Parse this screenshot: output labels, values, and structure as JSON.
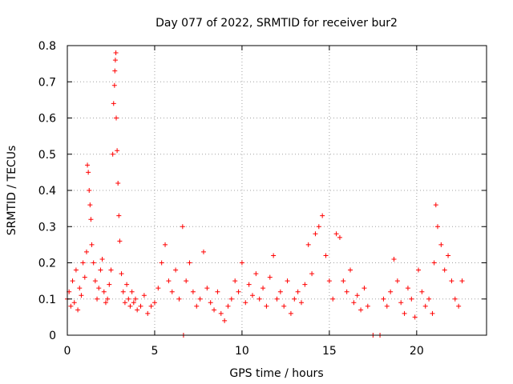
{
  "chart_data": {
    "type": "scatter",
    "title": "Day 077 of 2022, SRMTID for receiver bur2",
    "xlabel": "GPS time / hours",
    "ylabel": "SRMTID / TECUs",
    "xlim": [
      0,
      24
    ],
    "ylim": [
      0,
      0.8
    ],
    "xticks": [
      0,
      5,
      10,
      15,
      20
    ],
    "xtick_labels": [
      "0",
      "5",
      "10",
      "15",
      "20"
    ],
    "yticks": [
      0,
      0.1,
      0.2,
      0.3,
      0.4,
      0.5,
      0.6,
      0.7,
      0.8
    ],
    "ytick_labels": [
      "0",
      "0.1",
      "0.2",
      "0.3",
      "0.4",
      "0.5",
      "0.6",
      "0.7",
      "0.8"
    ],
    "grid": true,
    "marker": "+",
    "series": [
      {
        "name": "SRMTID",
        "color": "#ff0000",
        "x": [
          0.0,
          0.1,
          0.2,
          0.3,
          0.4,
          0.5,
          0.6,
          0.7,
          0.8,
          0.9,
          1.0,
          1.1,
          1.15,
          1.2,
          1.25,
          1.3,
          1.35,
          1.4,
          1.5,
          1.6,
          1.7,
          1.8,
          1.9,
          2.0,
          2.1,
          2.2,
          2.3,
          2.4,
          2.5,
          2.6,
          2.65,
          2.7,
          2.72,
          2.75,
          2.78,
          2.8,
          2.85,
          2.9,
          2.95,
          3.0,
          3.1,
          3.2,
          3.3,
          3.4,
          3.5,
          3.6,
          3.7,
          3.8,
          3.9,
          4.0,
          4.2,
          4.4,
          4.6,
          4.8,
          5.0,
          5.2,
          5.4,
          5.6,
          5.8,
          6.0,
          6.2,
          6.4,
          6.6,
          6.65,
          6.8,
          7.0,
          7.2,
          7.4,
          7.6,
          7.8,
          8.0,
          8.2,
          8.4,
          8.6,
          8.8,
          9.0,
          9.2,
          9.4,
          9.6,
          9.8,
          10.0,
          10.2,
          10.4,
          10.6,
          10.8,
          11.0,
          11.2,
          11.4,
          11.6,
          11.8,
          12.0,
          12.2,
          12.4,
          12.6,
          12.8,
          13.0,
          13.2,
          13.4,
          13.6,
          13.8,
          14.0,
          14.2,
          14.4,
          14.6,
          14.8,
          15.0,
          15.2,
          15.4,
          15.6,
          15.8,
          16.0,
          16.2,
          16.4,
          16.6,
          16.8,
          17.0,
          17.2,
          17.5,
          17.9,
          18.1,
          18.3,
          18.5,
          18.7,
          18.9,
          19.1,
          19.3,
          19.5,
          19.7,
          19.9,
          20.1,
          20.3,
          20.5,
          20.7,
          20.9,
          21.0,
          21.1,
          21.2,
          21.4,
          21.6,
          21.8,
          22.0,
          22.2,
          22.4,
          22.6
        ],
        "y": [
          0.1,
          0.12,
          0.08,
          0.15,
          0.09,
          0.18,
          0.07,
          0.13,
          0.11,
          0.2,
          0.16,
          0.23,
          0.47,
          0.45,
          0.4,
          0.36,
          0.32,
          0.25,
          0.2,
          0.15,
          0.1,
          0.13,
          0.18,
          0.21,
          0.12,
          0.09,
          0.1,
          0.14,
          0.18,
          0.5,
          0.64,
          0.69,
          0.73,
          0.76,
          0.78,
          0.6,
          0.51,
          0.42,
          0.33,
          0.26,
          0.17,
          0.12,
          0.09,
          0.14,
          0.1,
          0.08,
          0.12,
          0.09,
          0.1,
          0.07,
          0.08,
          0.11,
          0.06,
          0.08,
          0.09,
          0.13,
          0.2,
          0.25,
          0.15,
          0.12,
          0.18,
          0.1,
          0.3,
          0.0,
          0.15,
          0.2,
          0.12,
          0.08,
          0.1,
          0.23,
          0.13,
          0.09,
          0.07,
          0.12,
          0.06,
          0.04,
          0.08,
          0.1,
          0.15,
          0.12,
          0.2,
          0.09,
          0.14,
          0.11,
          0.17,
          0.1,
          0.13,
          0.08,
          0.16,
          0.22,
          0.1,
          0.12,
          0.08,
          0.15,
          0.06,
          0.1,
          0.12,
          0.09,
          0.14,
          0.25,
          0.17,
          0.28,
          0.3,
          0.33,
          0.22,
          0.15,
          0.1,
          0.28,
          0.27,
          0.15,
          0.12,
          0.18,
          0.09,
          0.11,
          0.07,
          0.13,
          0.08,
          0.0,
          0.0,
          0.1,
          0.08,
          0.12,
          0.21,
          0.15,
          0.09,
          0.06,
          0.13,
          0.1,
          0.05,
          0.18,
          0.12,
          0.08,
          0.1,
          0.06,
          0.2,
          0.36,
          0.3,
          0.25,
          0.18,
          0.22,
          0.15,
          0.1,
          0.08,
          0.15
        ]
      }
    ]
  }
}
